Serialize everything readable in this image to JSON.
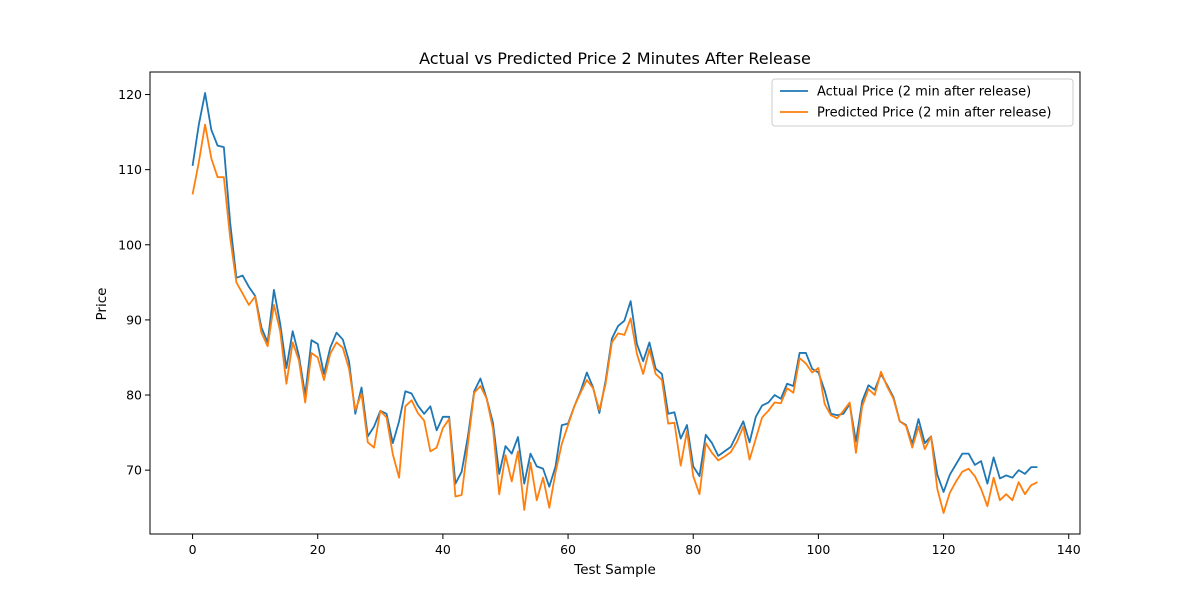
{
  "chart_data": {
    "type": "line",
    "title": "Actual vs Predicted Price 2 Minutes After Release",
    "xlabel": "Test Sample",
    "ylabel": "Price",
    "xlim": [
      -6.8,
      141.8
    ],
    "ylim": [
      61.5,
      123
    ],
    "xticks": [
      0,
      20,
      40,
      60,
      80,
      100,
      120,
      140
    ],
    "yticks": [
      70,
      80,
      90,
      100,
      110,
      120
    ],
    "grid": false,
    "legend_position": "upper right",
    "series": [
      {
        "name": "Actual Price (2 min after release)",
        "color": "#1f77b4",
        "values": [
          110.5,
          116.0,
          120.2,
          115.3,
          113.2,
          113.0,
          103.0,
          95.6,
          95.9,
          94.4,
          93.2,
          89.0,
          87.0,
          94.0,
          89.5,
          83.6,
          88.5,
          85.2,
          80.0,
          87.3,
          86.8,
          82.8,
          86.3,
          88.3,
          87.4,
          84.5,
          77.5,
          81.0,
          74.5,
          75.8,
          77.9,
          77.5,
          73.6,
          76.5,
          80.5,
          80.2,
          78.6,
          77.5,
          78.5,
          75.3,
          77.1,
          77.1,
          68.2,
          69.8,
          74.5,
          80.5,
          82.2,
          79.5,
          76.3,
          69.5,
          73.2,
          72.2,
          74.4,
          68.2,
          72.2,
          70.5,
          70.2,
          67.8,
          70.5,
          76.0,
          76.2,
          78.5,
          80.5,
          83.0,
          81.0,
          77.6,
          81.9,
          87.5,
          89.2,
          89.9,
          92.5,
          86.8,
          84.5,
          87.0,
          83.5,
          82.8,
          77.5,
          77.7,
          74.2,
          76.0,
          70.5,
          69.2,
          74.7,
          73.6,
          71.9,
          72.5,
          73.1,
          74.8,
          76.5,
          73.7,
          77.1,
          78.6,
          79.0,
          80.0,
          79.5,
          81.5,
          81.2,
          85.6,
          85.6,
          83.5,
          83.0,
          80.6,
          77.5,
          77.3,
          77.5,
          78.8,
          73.8,
          79.2,
          81.3,
          80.7,
          82.8,
          81.3,
          79.7,
          76.5,
          76.0,
          73.5,
          76.8,
          73.6,
          74.5,
          69.4,
          67.1,
          69.4,
          70.8,
          72.2,
          72.2,
          70.7,
          71.2,
          68.2,
          71.7,
          68.9,
          69.3,
          69.0,
          70.0,
          69.5,
          70.4,
          70.4
        ]
      },
      {
        "name": "Predicted Price (2 min after release)",
        "color": "#ff7f0e",
        "values": [
          106.7,
          111.0,
          116.0,
          111.5,
          109.0,
          109.0,
          101.0,
          95.0,
          93.5,
          92.0,
          93.1,
          88.3,
          86.5,
          92.0,
          88.5,
          81.5,
          87.0,
          84.6,
          79.0,
          85.6,
          85.0,
          82.0,
          85.5,
          87.0,
          86.3,
          83.5,
          78.0,
          80.2,
          73.7,
          73.0,
          77.9,
          77.0,
          72.1,
          69.0,
          78.5,
          79.3,
          77.6,
          76.6,
          72.5,
          73.0,
          75.6,
          76.8,
          66.5,
          66.7,
          73.5,
          80.3,
          81.2,
          79.5,
          75.5,
          66.8,
          72.0,
          68.5,
          72.5,
          64.7,
          71.0,
          66.0,
          69.0,
          65.0,
          69.7,
          73.5,
          76.0,
          78.5,
          80.3,
          82.0,
          80.9,
          78.0,
          81.5,
          87.0,
          88.2,
          88.0,
          90.2,
          85.5,
          82.8,
          86.1,
          82.8,
          82.0,
          76.2,
          76.3,
          70.6,
          75.2,
          69.2,
          66.8,
          73.6,
          72.3,
          71.3,
          71.8,
          72.4,
          73.8,
          75.8,
          71.4,
          74.2,
          77.0,
          77.9,
          79.0,
          78.9,
          80.9,
          80.3,
          84.9,
          84.2,
          83.0,
          83.6,
          78.8,
          77.3,
          76.9,
          77.9,
          79.0,
          72.3,
          78.5,
          80.8,
          80.0,
          83.1,
          81.1,
          79.5,
          76.5,
          75.9,
          73.0,
          75.8,
          72.8,
          74.5,
          67.5,
          64.3,
          67.0,
          68.5,
          69.8,
          70.2,
          69.2,
          67.5,
          65.2,
          69.0,
          66.0,
          66.8,
          66.0,
          68.4,
          66.8,
          68.0,
          68.4
        ]
      }
    ]
  }
}
